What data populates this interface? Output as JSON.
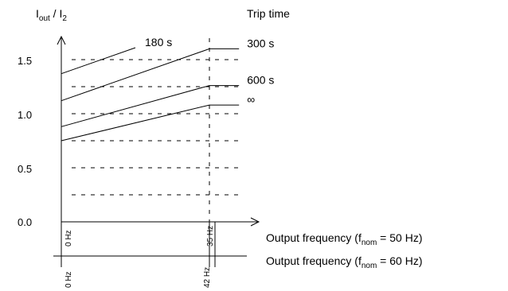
{
  "chart_data": {
    "type": "line",
    "y_axis_label": {
      "main": "I",
      "sub1": "out",
      "sep": " / I",
      "sub2": "2"
    },
    "ylim": [
      0,
      1.75
    ],
    "yticks": [
      0.0,
      0.5,
      1.0,
      1.5
    ],
    "ytick_labels": [
      "0.0",
      "0.5",
      "1.0",
      "1.5"
    ],
    "legend_title": "Trip time",
    "series": [
      {
        "name": "180 s",
        "x": [
          0,
          0.5
        ],
        "y": [
          1.37,
          1.61
        ]
      },
      {
        "name": "300 s",
        "x": [
          0,
          1,
          1.2
        ],
        "y": [
          1.12,
          1.6,
          1.6
        ]
      },
      {
        "name": "600 s",
        "x": [
          0,
          1,
          1.2
        ],
        "y": [
          0.88,
          1.26,
          1.26
        ]
      },
      {
        "name": "∞",
        "x": [
          0,
          1,
          1.2
        ],
        "y": [
          0.75,
          1.08,
          1.08
        ]
      }
    ],
    "frequency_scales": [
      {
        "label": {
          "pre": "Output frequency (f",
          "sub": "nom",
          "post": " = 50 Hz)"
        },
        "tick_labels": [
          "0 Hz",
          "35 Hz"
        ]
      },
      {
        "label": {
          "pre": "Output frequency (f",
          "sub": "nom",
          "post": " = 60 Hz)"
        },
        "tick_labels": [
          "0 Hz",
          "42 Hz"
        ]
      }
    ]
  }
}
